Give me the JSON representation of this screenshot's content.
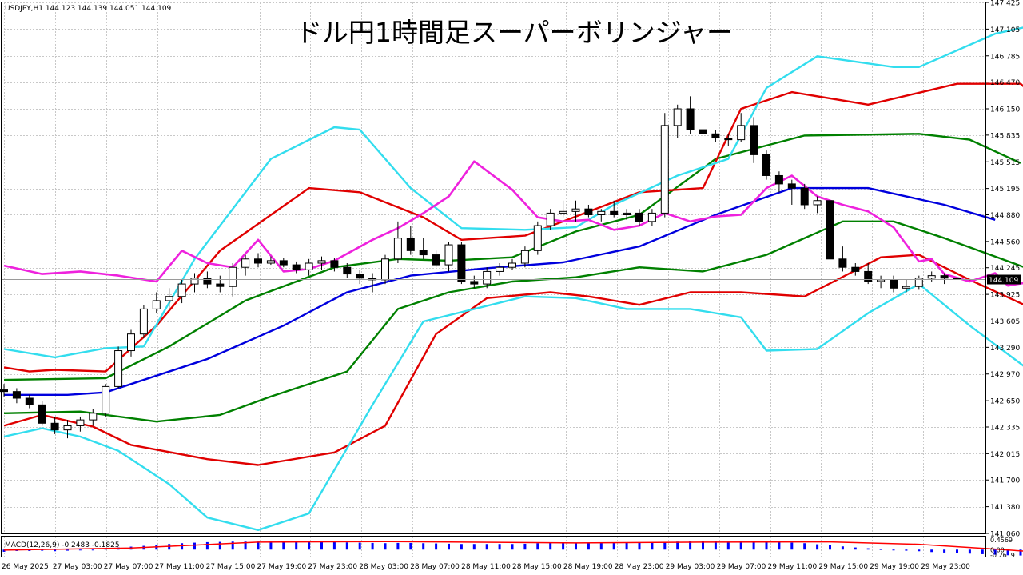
{
  "chart_data": {
    "type": "candlestick",
    "title": "ドル円1時間足スーパーボリンジャー",
    "symbol_info": "USDJPY,H1  144.123 144.139 144.051 144.109",
    "last_price_label": "144.109",
    "last_price": 144.109,
    "ylim": [
      141.06,
      147.425
    ],
    "y_ticks": [
      "147.425",
      "147.105",
      "146.785",
      "146.470",
      "146.150",
      "145.835",
      "145.515",
      "145.195",
      "144.880",
      "144.560",
      "144.245",
      "143.925",
      "143.605",
      "143.290",
      "142.970",
      "142.650",
      "142.335",
      "142.015",
      "141.700",
      "141.380",
      "141.060"
    ],
    "x_ticks": [
      "26 May 2025",
      "27 May 03:00",
      "27 May 07:00",
      "27 May 11:00",
      "27 May 15:00",
      "27 May 19:00",
      "27 May 23:00",
      "28 May 03:00",
      "28 May 07:00",
      "28 May 11:00",
      "28 May 15:00",
      "28 May 19:00",
      "28 May 23:00",
      "29 May 03:00",
      "29 May 07:00",
      "29 May 11:00",
      "29 May 15:00",
      "29 May 19:00",
      "29 May 23:00"
    ],
    "grid": true,
    "colors": {
      "up_body": "#ffffff",
      "down_body": "#000000",
      "sma": "#0000dd",
      "sigma1": "#008000",
      "sigma2": "#e00000",
      "sigma3": "#33ddee",
      "lagging_span": "#ee22dd",
      "macd_hist": "#0000ff",
      "macd_signal": "#ff0000",
      "grid": "#c8c8c8"
    },
    "candles": [
      [
        142.78,
        142.85,
        142.7,
        142.76
      ],
      [
        142.76,
        142.8,
        142.62,
        142.68
      ],
      [
        142.68,
        142.72,
        142.56,
        142.6
      ],
      [
        142.6,
        142.65,
        142.35,
        142.38
      ],
      [
        142.38,
        142.45,
        142.25,
        142.3
      ],
      [
        142.3,
        142.42,
        142.2,
        142.35
      ],
      [
        142.35,
        142.46,
        142.28,
        142.42
      ],
      [
        142.42,
        142.55,
        142.35,
        142.5
      ],
      [
        142.5,
        142.85,
        142.45,
        142.82
      ],
      [
        142.82,
        143.3,
        142.8,
        143.25
      ],
      [
        143.25,
        143.5,
        143.18,
        143.45
      ],
      [
        143.45,
        143.8,
        143.4,
        143.75
      ],
      [
        143.75,
        143.95,
        143.7,
        143.85
      ],
      [
        143.85,
        144.0,
        143.75,
        143.9
      ],
      [
        143.9,
        144.1,
        143.82,
        144.05
      ],
      [
        144.05,
        144.18,
        143.95,
        144.12
      ],
      [
        144.12,
        144.2,
        144.0,
        144.05
      ],
      [
        144.05,
        144.15,
        143.95,
        144.02
      ],
      [
        144.02,
        144.3,
        143.9,
        144.25
      ],
      [
        144.25,
        144.4,
        144.15,
        144.35
      ],
      [
        144.35,
        144.42,
        144.25,
        144.3
      ],
      [
        144.3,
        144.38,
        144.28,
        144.33
      ],
      [
        144.33,
        144.36,
        144.25,
        144.28
      ],
      [
        144.28,
        144.32,
        144.18,
        144.22
      ],
      [
        144.22,
        144.35,
        144.15,
        144.3
      ],
      [
        144.3,
        144.38,
        144.22,
        144.33
      ],
      [
        144.33,
        144.36,
        144.2,
        144.25
      ],
      [
        144.25,
        144.3,
        144.12,
        144.17
      ],
      [
        144.17,
        144.22,
        144.05,
        144.12
      ],
      [
        144.12,
        144.18,
        143.95,
        144.1
      ],
      [
        144.1,
        144.4,
        144.05,
        144.35
      ],
      [
        144.35,
        144.8,
        144.3,
        144.6
      ],
      [
        144.6,
        144.75,
        144.4,
        144.45
      ],
      [
        144.45,
        144.6,
        144.35,
        144.4
      ],
      [
        144.4,
        144.45,
        144.25,
        144.28
      ],
      [
        144.28,
        144.55,
        144.2,
        144.52
      ],
      [
        144.52,
        144.55,
        144.05,
        144.08
      ],
      [
        144.08,
        144.15,
        144.0,
        144.05
      ],
      [
        144.05,
        144.25,
        144.0,
        144.2
      ],
      [
        144.2,
        144.3,
        144.15,
        144.25
      ],
      [
        144.25,
        144.35,
        144.22,
        144.3
      ],
      [
        144.3,
        144.5,
        144.25,
        144.45
      ],
      [
        144.45,
        144.8,
        144.4,
        144.75
      ],
      [
        144.75,
        144.95,
        144.7,
        144.9
      ],
      [
        144.9,
        145.05,
        144.85,
        144.92
      ],
      [
        144.92,
        145.05,
        144.8,
        144.95
      ],
      [
        144.95,
        145.0,
        144.85,
        144.88
      ],
      [
        144.88,
        144.95,
        144.8,
        144.92
      ],
      [
        144.92,
        145.05,
        144.85,
        144.88
      ],
      [
        144.88,
        144.95,
        144.82,
        144.9
      ],
      [
        144.9,
        144.95,
        144.75,
        144.8
      ],
      [
        144.8,
        144.95,
        144.75,
        144.9
      ],
      [
        144.9,
        146.1,
        144.85,
        145.95
      ],
      [
        145.95,
        146.2,
        145.8,
        146.15
      ],
      [
        146.15,
        146.3,
        145.85,
        145.9
      ],
      [
        145.9,
        146.0,
        145.8,
        145.85
      ],
      [
        145.85,
        145.9,
        145.75,
        145.8
      ],
      [
        145.8,
        145.85,
        145.7,
        145.78
      ],
      [
        145.78,
        146.1,
        145.75,
        145.95
      ],
      [
        145.95,
        146.05,
        145.5,
        145.6
      ],
      [
        145.6,
        145.65,
        145.3,
        145.35
      ],
      [
        145.35,
        145.4,
        145.15,
        145.25
      ],
      [
        145.25,
        145.3,
        145.0,
        145.2
      ],
      [
        145.2,
        145.25,
        144.95,
        145.0
      ],
      [
        145.0,
        145.1,
        144.9,
        145.05
      ],
      [
        145.05,
        145.1,
        144.3,
        144.35
      ],
      [
        144.35,
        144.5,
        144.2,
        144.25
      ],
      [
        144.25,
        144.3,
        144.15,
        144.2
      ],
      [
        144.2,
        144.3,
        144.05,
        144.08
      ],
      [
        144.08,
        144.15,
        144.0,
        144.1
      ],
      [
        144.1,
        144.15,
        143.95,
        144.0
      ],
      [
        144.0,
        144.1,
        143.95,
        144.02
      ],
      [
        144.02,
        144.15,
        143.98,
        144.12
      ],
      [
        144.12,
        144.2,
        144.08,
        144.15
      ],
      [
        144.15,
        144.18,
        144.05,
        144.12
      ],
      [
        144.123,
        144.139,
        144.051,
        144.109
      ]
    ],
    "bands": {
      "sma": [
        [
          0,
          142.72
        ],
        [
          5,
          142.72
        ],
        [
          8,
          142.75
        ],
        [
          12,
          142.95
        ],
        [
          16,
          143.15
        ],
        [
          22,
          143.55
        ],
        [
          27,
          143.95
        ],
        [
          32,
          144.15
        ],
        [
          38,
          144.24
        ],
        [
          44,
          144.31
        ],
        [
          50,
          144.5
        ],
        [
          56,
          144.88
        ],
        [
          62,
          145.2
        ],
        [
          68,
          145.2
        ],
        [
          74,
          145.0
        ],
        [
          78,
          144.82
        ]
      ],
      "plus1": [
        [
          0,
          142.9
        ],
        [
          8,
          142.92
        ],
        [
          13,
          143.3
        ],
        [
          19,
          143.85
        ],
        [
          26,
          144.25
        ],
        [
          31,
          144.35
        ],
        [
          35,
          144.33
        ],
        [
          40,
          144.37
        ],
        [
          45,
          144.68
        ],
        [
          50,
          144.88
        ],
        [
          56,
          145.55
        ],
        [
          63,
          145.83
        ],
        [
          72,
          145.85
        ],
        [
          76,
          145.78
        ],
        [
          80,
          145.5
        ]
      ],
      "minus1": [
        [
          0,
          142.5
        ],
        [
          6,
          142.52
        ],
        [
          12,
          142.4
        ],
        [
          17,
          142.48
        ],
        [
          21,
          142.7
        ],
        [
          27,
          143.0
        ],
        [
          31,
          143.75
        ],
        [
          35,
          143.95
        ],
        [
          40,
          144.08
        ],
        [
          45,
          144.13
        ],
        [
          50,
          144.25
        ],
        [
          55,
          144.2
        ],
        [
          60,
          144.4
        ],
        [
          66,
          144.8
        ],
        [
          70,
          144.8
        ],
        [
          74,
          144.6
        ],
        [
          78,
          144.38
        ],
        [
          83,
          144.1
        ]
      ],
      "plus2": [
        [
          0,
          143.05
        ],
        [
          2,
          143.0
        ],
        [
          4,
          143.02
        ],
        [
          8,
          143.0
        ],
        [
          12,
          143.55
        ],
        [
          17,
          144.45
        ],
        [
          24,
          145.2
        ],
        [
          28,
          145.15
        ],
        [
          33,
          144.85
        ],
        [
          36,
          144.58
        ],
        [
          41,
          144.63
        ],
        [
          44,
          144.8
        ],
        [
          50,
          145.15
        ],
        [
          55,
          145.2
        ],
        [
          58,
          146.15
        ],
        [
          62,
          146.35
        ],
        [
          68,
          146.2
        ],
        [
          75,
          146.45
        ],
        [
          80,
          146.45
        ],
        [
          82,
          146.18
        ]
      ],
      "minus2": [
        [
          0,
          142.35
        ],
        [
          3,
          142.48
        ],
        [
          7,
          142.34
        ],
        [
          10,
          142.12
        ],
        [
          16,
          141.95
        ],
        [
          20,
          141.88
        ],
        [
          26,
          142.03
        ],
        [
          30,
          142.35
        ],
        [
          34,
          143.45
        ],
        [
          38,
          143.88
        ],
        [
          43,
          143.95
        ],
        [
          46,
          143.9
        ],
        [
          50,
          143.8
        ],
        [
          54,
          143.95
        ],
        [
          58,
          143.95
        ],
        [
          63,
          143.9
        ],
        [
          69,
          144.37
        ],
        [
          72,
          144.4
        ],
        [
          76,
          144.1
        ],
        [
          81,
          143.75
        ],
        [
          84,
          143.6
        ]
      ],
      "plus3": [
        [
          0,
          143.27
        ],
        [
          2,
          143.22
        ],
        [
          4,
          143.17
        ],
        [
          8,
          143.28
        ],
        [
          11,
          143.3
        ],
        [
          15,
          144.35
        ],
        [
          21,
          145.55
        ],
        [
          26,
          145.93
        ],
        [
          28,
          145.9
        ],
        [
          32,
          145.2
        ],
        [
          36,
          144.72
        ],
        [
          41,
          144.7
        ],
        [
          45,
          144.73
        ],
        [
          48,
          145.0
        ],
        [
          53,
          145.35
        ],
        [
          57,
          145.55
        ],
        [
          60,
          146.4
        ],
        [
          64,
          146.78
        ],
        [
          70,
          146.65
        ],
        [
          72,
          146.65
        ],
        [
          78,
          147.05
        ],
        [
          81,
          147.15
        ],
        [
          84,
          146.78
        ]
      ],
      "minus3": [
        [
          0,
          142.22
        ],
        [
          3,
          142.32
        ],
        [
          6,
          142.22
        ],
        [
          9,
          142.05
        ],
        [
          13,
          141.65
        ],
        [
          16,
          141.25
        ],
        [
          20,
          141.1
        ],
        [
          24,
          141.3
        ],
        [
          29,
          142.6
        ],
        [
          33,
          143.6
        ],
        [
          37,
          143.75
        ],
        [
          41,
          143.9
        ],
        [
          45,
          143.88
        ],
        [
          49,
          143.75
        ],
        [
          54,
          143.75
        ],
        [
          58,
          143.65
        ],
        [
          60,
          143.25
        ],
        [
          64,
          143.27
        ],
        [
          68,
          143.7
        ],
        [
          72,
          144.05
        ],
        [
          76,
          143.55
        ],
        [
          81,
          142.98
        ],
        [
          84,
          142.9
        ]
      ]
    },
    "lagging_span": [
      [
        0,
        144.27
      ],
      [
        3,
        144.17
      ],
      [
        6,
        144.2
      ],
      [
        9,
        144.15
      ],
      [
        12,
        144.08
      ],
      [
        14,
        144.45
      ],
      [
        16,
        144.3
      ],
      [
        18,
        144.25
      ],
      [
        20,
        144.58
      ],
      [
        22,
        144.2
      ],
      [
        24,
        144.23
      ],
      [
        26,
        144.33
      ],
      [
        29,
        144.58
      ],
      [
        31,
        144.72
      ],
      [
        33,
        144.9
      ],
      [
        35,
        145.1
      ],
      [
        37,
        145.52
      ],
      [
        40,
        145.18
      ],
      [
        42,
        144.85
      ],
      [
        44,
        144.8
      ],
      [
        46,
        144.82
      ],
      [
        48,
        144.7
      ],
      [
        50,
        144.75
      ],
      [
        52,
        144.9
      ],
      [
        54,
        144.8
      ],
      [
        56,
        144.86
      ],
      [
        58,
        144.88
      ],
      [
        60,
        145.2
      ],
      [
        62,
        145.35
      ],
      [
        64,
        145.1
      ],
      [
        66,
        145.0
      ],
      [
        68,
        144.92
      ],
      [
        70,
        144.73
      ],
      [
        72,
        144.32
      ],
      [
        73,
        144.35
      ],
      [
        74,
        144.17
      ],
      [
        76,
        144.08
      ],
      [
        78,
        144.18
      ],
      [
        79,
        144.03
      ],
      [
        81,
        144.08
      ],
      [
        82,
        144.05
      ],
      [
        84,
        144.09
      ]
    ],
    "macd": {
      "label": "MACD(12,26,9) -0.2483 -0.1825",
      "y_ticks": [
        "0.4569",
        "0.00",
        "-0.2619"
      ],
      "ylim": [
        -0.2619,
        0.4569
      ],
      "histogram": [
        -0.08,
        -0.05,
        -0.05,
        -0.04,
        -0.06,
        -0.04,
        -0.03,
        0.0,
        0.05,
        0.08,
        0.11,
        0.14,
        0.18,
        0.21,
        0.24,
        0.26,
        0.28,
        0.29,
        0.3,
        0.3,
        0.3,
        0.3,
        0.3,
        0.3,
        0.3,
        0.29,
        0.28,
        0.27,
        0.26,
        0.25,
        0.24,
        0.25,
        0.25,
        0.24,
        0.23,
        0.22,
        0.21,
        0.21,
        0.21,
        0.21,
        0.21,
        0.22,
        0.24,
        0.25,
        0.26,
        0.26,
        0.26,
        0.25,
        0.25,
        0.25,
        0.25,
        0.25,
        0.28,
        0.3,
        0.32,
        0.32,
        0.31,
        0.3,
        0.31,
        0.32,
        0.3,
        0.28,
        0.26,
        0.24,
        0.2,
        0.16,
        0.12,
        0.08,
        0.05,
        0.02,
        -0.01,
        -0.04,
        -0.06,
        -0.09,
        -0.11,
        -0.13,
        -0.15,
        -0.17,
        -0.19,
        -0.21,
        -0.22,
        -0.23,
        -0.24,
        -0.25
      ],
      "signal": [
        [
          0,
          -0.02
        ],
        [
          10,
          0.06
        ],
        [
          20,
          0.28
        ],
        [
          30,
          0.3
        ],
        [
          45,
          0.25
        ],
        [
          55,
          0.28
        ],
        [
          65,
          0.29
        ],
        [
          72,
          0.2
        ],
        [
          78,
          0.02
        ],
        [
          84,
          -0.18
        ]
      ]
    }
  }
}
